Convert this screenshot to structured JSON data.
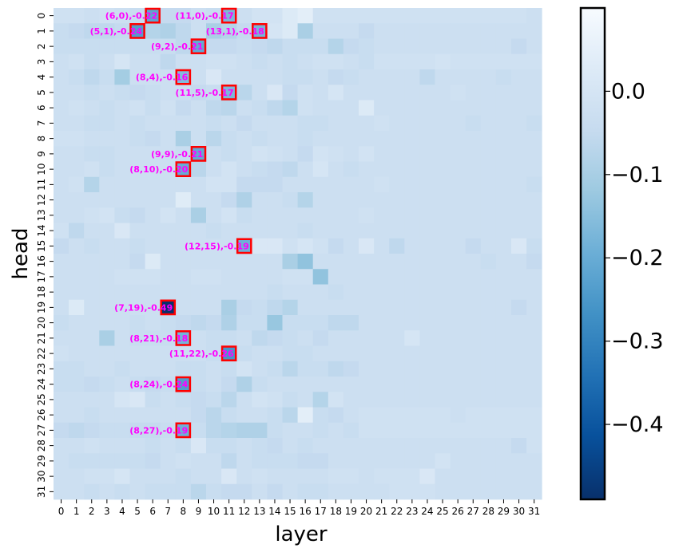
{
  "chart_data": {
    "type": "heatmap",
    "title": "",
    "xlabel": "layer",
    "ylabel": "head",
    "x_ticks": [
      "0",
      "1",
      "2",
      "3",
      "4",
      "5",
      "6",
      "7",
      "8",
      "9",
      "10",
      "11",
      "12",
      "13",
      "14",
      "15",
      "16",
      "17",
      "18",
      "19",
      "20",
      "21",
      "22",
      "23",
      "24",
      "25",
      "26",
      "27",
      "28",
      "29",
      "30",
      "31"
    ],
    "y_ticks": [
      "0",
      "1",
      "2",
      "3",
      "4",
      "5",
      "6",
      "7",
      "8",
      "9",
      "10",
      "11",
      "12",
      "13",
      "14",
      "15",
      "16",
      "17",
      "18",
      "19",
      "20",
      "21",
      "22",
      "23",
      "24",
      "25",
      "26",
      "27",
      "28",
      "29",
      "30",
      "31"
    ],
    "colormap": "Blues_r",
    "vmin": -0.49,
    "vmax": 0.1,
    "colorbar_ticks": [
      {
        "value": 0.0,
        "label": "0.0"
      },
      {
        "value": -0.1,
        "label": "−0.1"
      },
      {
        "value": -0.2,
        "label": "−0.2"
      },
      {
        "value": -0.3,
        "label": "−0.3"
      },
      {
        "value": -0.4,
        "label": "−0.4"
      }
    ],
    "highlights": [
      {
        "layer": 6,
        "head": 0,
        "value": -0.22,
        "label": "(6,0),-0.22"
      },
      {
        "layer": 11,
        "head": 0,
        "value": -0.17,
        "label": "(11,0),-0.17"
      },
      {
        "layer": 5,
        "head": 1,
        "value": -0.24,
        "label": "(5,1),-0.24"
      },
      {
        "layer": 13,
        "head": 1,
        "value": -0.18,
        "label": "(13,1),-0.18"
      },
      {
        "layer": 9,
        "head": 2,
        "value": -0.21,
        "label": "(9,2),-0.21"
      },
      {
        "layer": 8,
        "head": 4,
        "value": -0.16,
        "label": "(8,4),-0.16"
      },
      {
        "layer": 11,
        "head": 5,
        "value": -0.17,
        "label": "(11,5),-0.17"
      },
      {
        "layer": 9,
        "head": 9,
        "value": -0.21,
        "label": "(9,9),-0.21"
      },
      {
        "layer": 8,
        "head": 10,
        "value": -0.2,
        "label": "(8,10),-0.20"
      },
      {
        "layer": 12,
        "head": 15,
        "value": -0.19,
        "label": "(12,15),-0.19"
      },
      {
        "layer": 7,
        "head": 19,
        "value": -0.49,
        "label": "(7,19),-0.49"
      },
      {
        "layer": 8,
        "head": 21,
        "value": -0.18,
        "label": "(8,21),-0.18"
      },
      {
        "layer": 11,
        "head": 22,
        "value": -0.26,
        "label": "(11,22),-0.26"
      },
      {
        "layer": 8,
        "head": 24,
        "value": -0.24,
        "label": "(8,24),-0.24"
      },
      {
        "layer": 8,
        "head": 27,
        "value": -0.19,
        "label": "(8,27),-0.19"
      }
    ],
    "values": [
      [
        -0.02,
        -0.02,
        -0.03,
        -0.02,
        -0.03,
        -0.04,
        -0.22,
        -0.05,
        -0.05,
        -0.03,
        -0.04,
        -0.17,
        -0.03,
        -0.01,
        -0.01,
        0.02,
        0.04,
        -0.02,
        -0.02,
        -0.02,
        -0.02,
        -0.02,
        -0.02,
        -0.02,
        -0.02,
        -0.02,
        -0.02,
        -0.02,
        -0.02,
        -0.02,
        -0.02,
        -0.03
      ],
      [
        -0.04,
        -0.05,
        -0.06,
        -0.06,
        -0.05,
        -0.24,
        -0.08,
        -0.09,
        -0.06,
        -0.03,
        -0.1,
        -0.08,
        -0.05,
        -0.18,
        0.0,
        0.02,
        -0.1,
        -0.03,
        -0.03,
        -0.03,
        -0.05,
        -0.03,
        -0.03,
        -0.03,
        -0.03,
        -0.03,
        -0.03,
        -0.03,
        -0.03,
        -0.03,
        -0.03,
        -0.03
      ],
      [
        -0.04,
        -0.04,
        -0.04,
        -0.04,
        -0.04,
        -0.04,
        -0.04,
        -0.04,
        -0.06,
        -0.21,
        -0.05,
        -0.05,
        -0.04,
        -0.05,
        -0.06,
        -0.04,
        -0.04,
        -0.04,
        -0.08,
        -0.05,
        -0.04,
        -0.03,
        -0.03,
        -0.03,
        -0.03,
        -0.03,
        -0.03,
        -0.03,
        -0.03,
        -0.03,
        -0.05,
        -0.03
      ],
      [
        -0.03,
        -0.02,
        -0.04,
        -0.03,
        0.0,
        -0.03,
        -0.03,
        -0.06,
        -0.03,
        -0.03,
        -0.02,
        -0.02,
        -0.03,
        -0.04,
        -0.03,
        -0.04,
        -0.03,
        -0.02,
        -0.02,
        -0.03,
        -0.04,
        -0.02,
        -0.02,
        -0.02,
        -0.02,
        -0.01,
        -0.02,
        -0.02,
        -0.02,
        -0.02,
        -0.02,
        -0.02
      ],
      [
        -0.03,
        -0.04,
        -0.06,
        -0.04,
        -0.11,
        -0.03,
        -0.03,
        -0.03,
        -0.16,
        -0.03,
        0.01,
        -0.03,
        -0.03,
        -0.03,
        -0.03,
        -0.04,
        -0.04,
        -0.03,
        -0.05,
        -0.04,
        -0.03,
        -0.03,
        -0.03,
        -0.03,
        -0.06,
        -0.03,
        -0.03,
        -0.03,
        -0.03,
        -0.04,
        -0.03,
        -0.03
      ],
      [
        -0.03,
        -0.03,
        -0.04,
        -0.03,
        -0.04,
        -0.05,
        -0.04,
        -0.03,
        -0.03,
        -0.05,
        -0.04,
        -0.17,
        -0.07,
        -0.03,
        0.01,
        -0.05,
        -0.02,
        -0.03,
        0.0,
        -0.03,
        -0.03,
        -0.03,
        -0.03,
        -0.03,
        -0.03,
        -0.03,
        -0.02,
        -0.03,
        -0.03,
        -0.03,
        -0.03,
        -0.03
      ],
      [
        -0.03,
        -0.02,
        -0.03,
        -0.04,
        -0.03,
        -0.02,
        -0.04,
        -0.02,
        -0.05,
        -0.03,
        -0.06,
        -0.07,
        -0.03,
        -0.04,
        -0.06,
        -0.08,
        -0.02,
        -0.03,
        -0.03,
        -0.03,
        0.02,
        -0.03,
        -0.03,
        -0.03,
        -0.03,
        -0.03,
        -0.03,
        -0.03,
        -0.03,
        -0.03,
        -0.03,
        -0.03
      ],
      [
        -0.03,
        -0.03,
        -0.04,
        -0.04,
        -0.03,
        -0.04,
        -0.03,
        -0.03,
        -0.03,
        -0.03,
        -0.04,
        -0.03,
        -0.05,
        -0.03,
        -0.03,
        -0.03,
        -0.04,
        -0.04,
        -0.03,
        -0.03,
        -0.03,
        -0.02,
        -0.03,
        -0.03,
        -0.03,
        -0.03,
        -0.03,
        -0.04,
        -0.03,
        -0.03,
        -0.03,
        -0.04
      ],
      [
        -0.02,
        -0.02,
        -0.03,
        -0.03,
        -0.03,
        -0.04,
        -0.05,
        -0.03,
        -0.1,
        -0.03,
        -0.07,
        -0.04,
        -0.03,
        -0.04,
        -0.03,
        -0.03,
        -0.04,
        -0.03,
        -0.03,
        -0.03,
        -0.03,
        -0.03,
        -0.03,
        -0.03,
        -0.03,
        -0.03,
        -0.03,
        -0.03,
        -0.03,
        -0.03,
        -0.03,
        -0.03
      ],
      [
        -0.03,
        -0.03,
        -0.04,
        -0.04,
        -0.03,
        -0.03,
        -0.03,
        -0.03,
        -0.04,
        -0.21,
        -0.03,
        -0.04,
        -0.03,
        -0.01,
        -0.02,
        -0.03,
        -0.05,
        -0.01,
        -0.02,
        -0.03,
        -0.01,
        -0.03,
        -0.03,
        -0.03,
        -0.03,
        -0.03,
        -0.03,
        -0.03,
        -0.03,
        -0.03,
        -0.03,
        -0.03
      ],
      [
        -0.03,
        -0.03,
        -0.02,
        -0.04,
        -0.03,
        -0.03,
        -0.03,
        -0.03,
        -0.2,
        -0.07,
        -0.03,
        -0.01,
        -0.03,
        -0.04,
        -0.05,
        -0.06,
        -0.03,
        0.0,
        -0.03,
        -0.04,
        -0.03,
        -0.03,
        -0.03,
        -0.03,
        -0.03,
        -0.03,
        -0.03,
        -0.03,
        -0.03,
        -0.03,
        -0.03,
        -0.03
      ],
      [
        -0.03,
        -0.02,
        -0.08,
        -0.03,
        -0.03,
        -0.03,
        -0.03,
        -0.03,
        -0.03,
        -0.03,
        -0.01,
        -0.01,
        -0.05,
        -0.05,
        -0.05,
        -0.03,
        -0.03,
        -0.03,
        -0.03,
        -0.03,
        -0.03,
        -0.02,
        -0.03,
        -0.03,
        -0.03,
        -0.03,
        -0.03,
        -0.03,
        -0.03,
        -0.03,
        -0.03,
        -0.04
      ],
      [
        -0.03,
        -0.03,
        -0.03,
        -0.03,
        -0.03,
        -0.03,
        -0.03,
        -0.03,
        0.03,
        -0.03,
        -0.03,
        -0.05,
        -0.09,
        -0.03,
        -0.03,
        -0.04,
        -0.08,
        -0.03,
        -0.03,
        -0.03,
        -0.03,
        -0.03,
        -0.03,
        -0.03,
        -0.03,
        -0.03,
        -0.03,
        -0.03,
        -0.03,
        -0.03,
        -0.03,
        -0.03
      ],
      [
        -0.03,
        -0.03,
        -0.02,
        -0.01,
        -0.04,
        -0.05,
        -0.03,
        -0.01,
        -0.03,
        -0.1,
        -0.03,
        -0.01,
        -0.04,
        -0.03,
        -0.03,
        -0.03,
        -0.03,
        -0.03,
        -0.03,
        -0.03,
        -0.02,
        -0.03,
        -0.03,
        -0.03,
        -0.03,
        -0.03,
        -0.03,
        -0.03,
        -0.03,
        -0.03,
        -0.03,
        -0.03
      ],
      [
        -0.02,
        -0.06,
        -0.03,
        -0.03,
        0.01,
        -0.03,
        -0.03,
        -0.03,
        -0.03,
        -0.03,
        -0.04,
        -0.03,
        -0.03,
        -0.03,
        -0.03,
        -0.03,
        -0.04,
        -0.03,
        -0.03,
        -0.03,
        -0.03,
        -0.03,
        -0.03,
        -0.03,
        -0.03,
        -0.03,
        -0.03,
        -0.03,
        -0.03,
        -0.03,
        -0.03,
        -0.03
      ],
      [
        -0.05,
        -0.03,
        -0.04,
        -0.03,
        -0.03,
        -0.04,
        -0.03,
        -0.03,
        -0.03,
        -0.03,
        -0.03,
        -0.03,
        -0.19,
        0.01,
        0.01,
        -0.02,
        0.0,
        -0.02,
        -0.05,
        -0.03,
        0.01,
        -0.03,
        -0.06,
        -0.03,
        -0.03,
        -0.03,
        -0.03,
        -0.05,
        -0.03,
        -0.03,
        0.01,
        -0.04
      ],
      [
        -0.03,
        -0.03,
        -0.03,
        -0.03,
        -0.03,
        -0.05,
        0.02,
        -0.03,
        -0.03,
        -0.03,
        -0.03,
        -0.03,
        -0.03,
        -0.03,
        -0.03,
        -0.1,
        -0.14,
        -0.03,
        -0.03,
        -0.03,
        -0.03,
        -0.03,
        -0.03,
        -0.03,
        -0.03,
        -0.03,
        -0.03,
        -0.03,
        -0.04,
        -0.03,
        -0.03,
        -0.05
      ],
      [
        -0.03,
        -0.03,
        -0.03,
        -0.03,
        -0.02,
        -0.02,
        -0.02,
        -0.03,
        -0.03,
        -0.02,
        -0.02,
        -0.03,
        -0.03,
        -0.03,
        -0.03,
        -0.02,
        -0.02,
        -0.14,
        -0.03,
        -0.03,
        -0.03,
        -0.03,
        -0.03,
        -0.03,
        -0.03,
        -0.03,
        -0.03,
        -0.03,
        -0.03,
        -0.03,
        -0.03,
        -0.03
      ],
      [
        -0.03,
        -0.03,
        -0.03,
        -0.03,
        -0.03,
        -0.03,
        -0.03,
        -0.03,
        -0.03,
        -0.03,
        -0.03,
        -0.03,
        -0.03,
        -0.03,
        -0.04,
        -0.03,
        -0.03,
        -0.03,
        -0.04,
        -0.03,
        -0.03,
        -0.03,
        -0.03,
        -0.03,
        -0.03,
        -0.03,
        -0.03,
        -0.03,
        -0.03,
        -0.03,
        -0.03,
        -0.03
      ],
      [
        -0.03,
        0.02,
        -0.03,
        -0.03,
        -0.03,
        -0.03,
        -0.03,
        -0.49,
        -0.03,
        -0.03,
        -0.03,
        -0.1,
        -0.05,
        -0.04,
        -0.06,
        -0.08,
        -0.03,
        -0.03,
        -0.03,
        -0.03,
        -0.03,
        -0.03,
        -0.03,
        -0.03,
        -0.03,
        -0.03,
        -0.03,
        -0.03,
        -0.03,
        -0.03,
        -0.05,
        -0.03
      ],
      [
        -0.04,
        -0.03,
        -0.03,
        -0.03,
        -0.03,
        -0.04,
        -0.03,
        -0.04,
        -0.05,
        -0.06,
        -0.05,
        -0.09,
        -0.04,
        -0.04,
        -0.13,
        -0.04,
        -0.04,
        -0.04,
        -0.06,
        -0.06,
        -0.03,
        -0.03,
        -0.03,
        -0.03,
        -0.03,
        -0.03,
        -0.03,
        -0.03,
        -0.03,
        -0.03,
        -0.03,
        -0.03
      ],
      [
        -0.03,
        -0.03,
        -0.03,
        -0.1,
        -0.03,
        -0.04,
        -0.04,
        -0.04,
        -0.18,
        -0.03,
        -0.04,
        -0.04,
        -0.03,
        -0.06,
        -0.05,
        -0.04,
        -0.03,
        -0.05,
        -0.03,
        -0.03,
        -0.03,
        -0.03,
        -0.03,
        0.0,
        -0.03,
        -0.03,
        -0.03,
        -0.03,
        -0.03,
        -0.03,
        -0.03,
        -0.03
      ],
      [
        -0.02,
        -0.03,
        -0.03,
        -0.03,
        -0.03,
        -0.03,
        -0.03,
        -0.03,
        -0.03,
        -0.03,
        -0.04,
        -0.26,
        -0.04,
        -0.03,
        -0.03,
        -0.04,
        -0.04,
        -0.03,
        -0.03,
        -0.03,
        -0.03,
        -0.03,
        -0.03,
        -0.03,
        -0.03,
        -0.03,
        -0.03,
        -0.03,
        -0.03,
        -0.03,
        -0.03,
        -0.03
      ],
      [
        -0.04,
        -0.04,
        -0.03,
        -0.03,
        -0.04,
        -0.03,
        -0.03,
        -0.03,
        -0.04,
        -0.04,
        -0.03,
        -0.04,
        -0.01,
        -0.03,
        -0.04,
        -0.07,
        -0.04,
        -0.04,
        -0.06,
        -0.05,
        -0.03,
        -0.03,
        -0.03,
        -0.03,
        -0.03,
        -0.03,
        -0.03,
        -0.03,
        -0.03,
        -0.03,
        -0.03,
        -0.03
      ],
      [
        -0.04,
        -0.04,
        -0.05,
        -0.04,
        -0.03,
        -0.04,
        -0.05,
        -0.04,
        -0.24,
        -0.04,
        -0.03,
        -0.05,
        -0.09,
        -0.04,
        -0.03,
        -0.03,
        -0.03,
        -0.03,
        -0.03,
        -0.03,
        -0.03,
        -0.03,
        -0.03,
        -0.03,
        -0.03,
        -0.03,
        -0.03,
        -0.03,
        -0.03,
        -0.03,
        -0.03,
        -0.03
      ],
      [
        -0.03,
        -0.03,
        -0.03,
        -0.03,
        0.0,
        0.01,
        -0.04,
        -0.03,
        -0.04,
        -0.05,
        -0.04,
        -0.07,
        -0.03,
        -0.01,
        -0.02,
        -0.04,
        -0.03,
        -0.08,
        -0.01,
        -0.03,
        -0.03,
        -0.03,
        -0.03,
        -0.03,
        -0.03,
        -0.03,
        -0.03,
        -0.03,
        -0.03,
        -0.03,
        -0.03,
        -0.03
      ],
      [
        -0.03,
        -0.03,
        -0.04,
        -0.03,
        -0.03,
        -0.03,
        -0.03,
        -0.03,
        -0.03,
        -0.05,
        -0.07,
        -0.04,
        -0.03,
        -0.03,
        -0.04,
        -0.07,
        0.04,
        -0.04,
        -0.05,
        -0.03,
        -0.02,
        -0.02,
        -0.02,
        -0.02,
        -0.02,
        -0.02,
        -0.03,
        -0.02,
        -0.02,
        -0.02,
        -0.02,
        -0.02
      ],
      [
        -0.05,
        -0.06,
        -0.05,
        -0.04,
        -0.04,
        -0.05,
        -0.05,
        -0.04,
        -0.19,
        -0.04,
        -0.07,
        -0.08,
        -0.09,
        -0.09,
        -0.04,
        -0.03,
        -0.03,
        -0.04,
        -0.03,
        -0.04,
        -0.02,
        -0.02,
        -0.02,
        -0.02,
        -0.02,
        -0.02,
        -0.02,
        -0.02,
        -0.02,
        -0.02,
        -0.02,
        -0.02
      ],
      [
        -0.03,
        -0.03,
        -0.02,
        -0.03,
        -0.03,
        -0.03,
        -0.04,
        -0.03,
        -0.04,
        0.01,
        -0.04,
        -0.04,
        -0.03,
        -0.04,
        -0.05,
        -0.03,
        -0.04,
        -0.03,
        -0.03,
        -0.03,
        -0.03,
        -0.03,
        -0.03,
        -0.03,
        -0.03,
        -0.03,
        -0.03,
        -0.03,
        -0.03,
        -0.03,
        -0.05,
        -0.02
      ],
      [
        -0.03,
        -0.04,
        -0.04,
        -0.04,
        -0.04,
        -0.04,
        -0.05,
        -0.03,
        -0.02,
        -0.03,
        -0.03,
        -0.06,
        -0.03,
        -0.04,
        -0.04,
        -0.04,
        -0.05,
        -0.05,
        -0.03,
        -0.03,
        -0.03,
        -0.03,
        -0.03,
        -0.03,
        -0.03,
        -0.01,
        -0.03,
        -0.03,
        -0.03,
        -0.03,
        -0.03,
        -0.03
      ],
      [
        -0.03,
        -0.03,
        -0.02,
        -0.02,
        0.0,
        -0.03,
        -0.03,
        -0.03,
        -0.04,
        -0.03,
        -0.03,
        0.01,
        -0.03,
        -0.02,
        -0.03,
        -0.03,
        -0.03,
        -0.03,
        -0.02,
        -0.02,
        -0.03,
        -0.02,
        -0.02,
        -0.02,
        0.01,
        -0.03,
        -0.03,
        -0.03,
        -0.03,
        -0.03,
        -0.03,
        -0.03
      ],
      [
        -0.03,
        -0.03,
        -0.04,
        -0.03,
        -0.04,
        -0.03,
        -0.04,
        -0.04,
        -0.04,
        -0.07,
        -0.04,
        -0.05,
        -0.05,
        -0.03,
        -0.05,
        -0.03,
        -0.04,
        -0.04,
        -0.03,
        -0.03,
        -0.03,
        -0.03,
        -0.02,
        -0.02,
        -0.02,
        -0.03,
        -0.03,
        -0.03,
        -0.03,
        -0.03,
        -0.03,
        -0.03
      ]
    ]
  }
}
